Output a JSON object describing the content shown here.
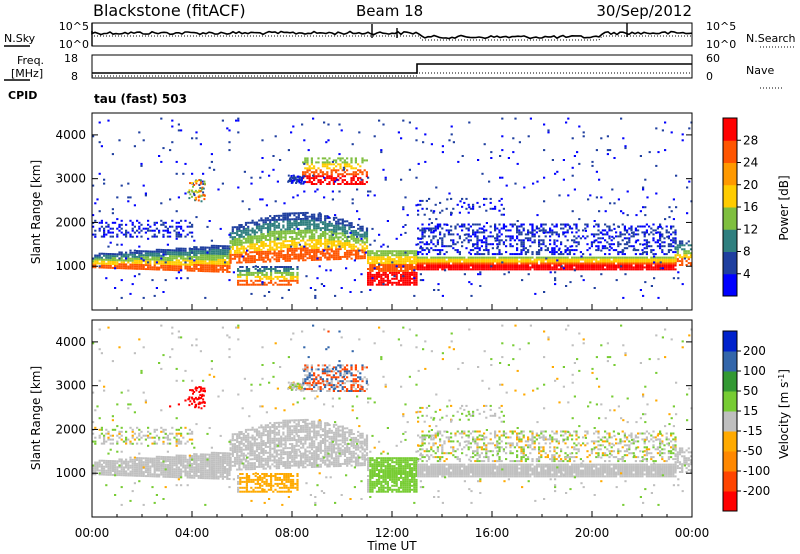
{
  "header": {
    "station": "Blackstone (fitACF)",
    "beam": "Beam 18",
    "date": "30/Sep/2012"
  },
  "status_panels": {
    "nsky_label": "N.Sky",
    "nsearch_label": "N.Search",
    "freq_label_line1": "Freq.",
    "freq_label_line2": "[MHz]",
    "nave_label": "Nave",
    "cpid_label": "CPID",
    "cpid_value": "tau (fast) 503",
    "noise_left_ticks": [
      "10^5",
      "10^0"
    ],
    "noise_right_ticks": [
      "10^5",
      "10^0"
    ],
    "freq_left_ticks": [
      "18",
      "8"
    ],
    "freq_right_ticks": [
      "60",
      "0"
    ]
  },
  "colors": {
    "power_scale": [
      "#0000ff",
      "#1f3f9f",
      "#2f7f7f",
      "#7fbf3f",
      "#ffcc00",
      "#ff9900",
      "#ff5500",
      "#ff0000"
    ],
    "velocity_scale": [
      "#ff0000",
      "#ff4400",
      "#ff8800",
      "#ffaa00",
      "#bfbfbf",
      "#77cc33",
      "#339933",
      "#3366aa",
      "#0022cc"
    ],
    "ground_scatter": "#c0c0c0"
  },
  "chart_data": [
    {
      "type": "heatmap",
      "name": "power",
      "ylabel": "Slant Range [km]",
      "yticks": [
        "1000",
        "2000",
        "3000",
        "4000"
      ],
      "ylim": [
        0,
        4500
      ],
      "xlim_hours": [
        0,
        24
      ],
      "colorbar_label": "Power [dB]",
      "colorbar_ticks": [
        "4",
        "8",
        "12",
        "16",
        "20",
        "24",
        "28"
      ],
      "colorbar_range": [
        0,
        32
      ]
    },
    {
      "type": "heatmap",
      "name": "velocity",
      "ylabel": "Slant Range [km]",
      "yticks": [
        "1000",
        "2000",
        "3000",
        "4000"
      ],
      "ylim": [
        0,
        4500
      ],
      "xlim_hours": [
        0,
        24
      ],
      "colorbar_label": "Velocity [m s",
      "colorbar_label_sup": "-1",
      "colorbar_label_end": "]",
      "colorbar_ticks": [
        "-200",
        "-100",
        "-50",
        "-15",
        "15",
        "50",
        "100",
        "200"
      ]
    }
  ],
  "x_axis": {
    "label": "Time UT",
    "ticks": [
      "00:00",
      "04:00",
      "08:00",
      "12:00",
      "16:00",
      "20:00",
      "00:00"
    ]
  }
}
